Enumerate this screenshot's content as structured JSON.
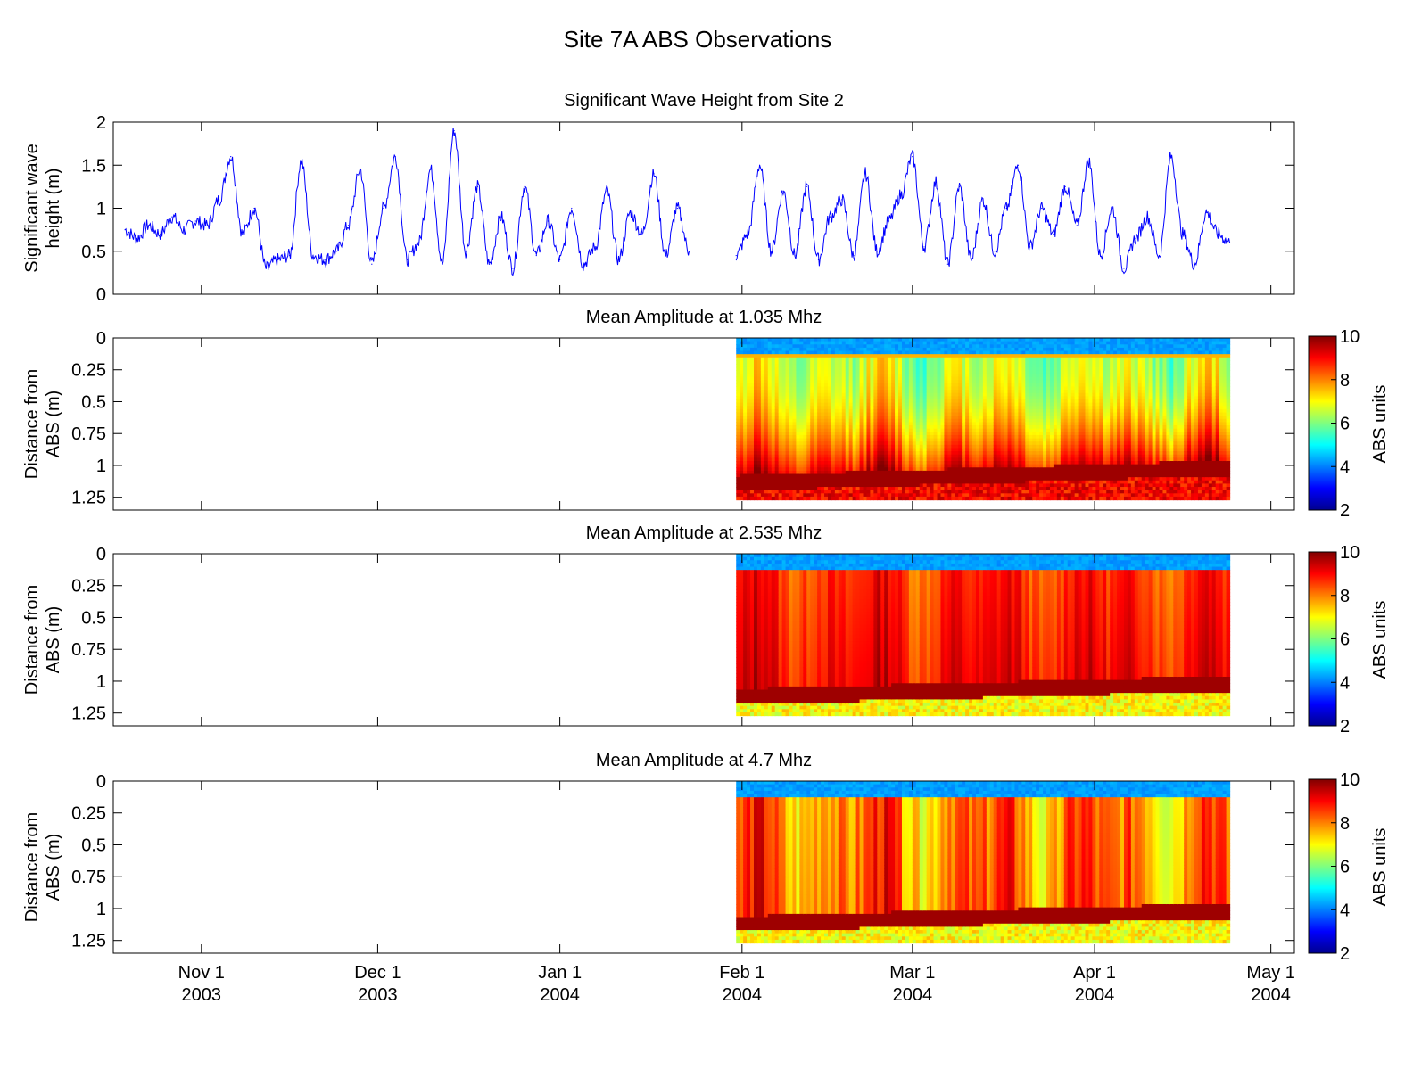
{
  "figure": {
    "title": "Site 7A ABS Observations",
    "time_axis": {
      "start": "2003-10-17",
      "end": "2004-05-05",
      "ticks": [
        {
          "date": "2003-11-01",
          "line1": "Nov 1",
          "line2": "2003"
        },
        {
          "date": "2003-12-01",
          "line1": "Dec 1",
          "line2": "2003"
        },
        {
          "date": "2004-01-01",
          "line1": "Jan 1",
          "line2": "2004"
        },
        {
          "date": "2004-02-01",
          "line1": "Feb 1",
          "line2": "2004"
        },
        {
          "date": "2004-03-01",
          "line1": "Mar 1",
          "line2": "2004"
        },
        {
          "date": "2004-04-01",
          "line1": "Apr 1",
          "line2": "2004"
        },
        {
          "date": "2004-05-01",
          "line1": "May 1",
          "line2": "2004"
        }
      ]
    }
  },
  "chart_data": [
    {
      "type": "line",
      "title": "Significant Wave Height from Site 2",
      "ylabel": [
        "Significant wave",
        "height (m)"
      ],
      "ylim": [
        0,
        2
      ],
      "yticks": [
        "0",
        "0.5",
        "1",
        "1.5",
        "2"
      ],
      "line_color": "#0000ff",
      "gap": {
        "start": "2004-01-23",
        "end": "2004-01-31"
      },
      "series": [
        {
          "x": [
            "2003-10-19",
            "2003-10-21",
            "2003-10-23",
            "2003-10-25",
            "2003-10-27",
            "2003-10-29",
            "2003-10-31",
            "2003-11-02",
            "2003-11-04",
            "2003-11-06",
            "2003-11-08",
            "2003-11-10",
            "2003-11-12",
            "2003-11-14",
            "2003-11-16",
            "2003-11-18",
            "2003-11-20",
            "2003-11-22",
            "2003-11-24",
            "2003-11-26",
            "2003-11-28",
            "2003-11-30",
            "2003-12-02",
            "2003-12-04",
            "2003-12-06",
            "2003-12-08",
            "2003-12-10",
            "2003-12-12",
            "2003-12-14",
            "2003-12-16",
            "2003-12-18",
            "2003-12-20",
            "2003-12-22",
            "2003-12-24",
            "2003-12-26",
            "2003-12-28",
            "2003-12-30",
            "2004-01-01",
            "2004-01-03",
            "2004-01-05",
            "2004-01-07",
            "2004-01-09",
            "2004-01-11",
            "2004-01-13",
            "2004-01-15",
            "2004-01-17",
            "2004-01-19",
            "2004-01-21",
            "2004-01-23"
          ],
          "values": [
            0.75,
            0.65,
            0.8,
            0.7,
            0.9,
            0.75,
            0.85,
            0.8,
            1.1,
            1.6,
            0.7,
            1.0,
            0.3,
            0.4,
            0.45,
            1.55,
            0.45,
            0.4,
            0.5,
            0.8,
            1.45,
            0.35,
            1.0,
            1.6,
            0.4,
            0.6,
            1.45,
            0.35,
            1.9,
            0.5,
            1.25,
            0.35,
            0.9,
            0.3,
            1.25,
            0.45,
            0.85,
            0.4,
            1.0,
            0.35,
            0.55,
            1.2,
            0.4,
            0.95,
            0.7,
            1.4,
            0.45,
            1.0,
            0.5
          ]
        },
        {
          "x": [
            "2004-01-31",
            "2004-02-02",
            "2004-02-04",
            "2004-02-06",
            "2004-02-08",
            "2004-02-10",
            "2004-02-12",
            "2004-02-14",
            "2004-02-16",
            "2004-02-18",
            "2004-02-20",
            "2004-02-22",
            "2004-02-24",
            "2004-02-26",
            "2004-02-28",
            "2004-03-01",
            "2004-03-03",
            "2004-03-05",
            "2004-03-07",
            "2004-03-09",
            "2004-03-11",
            "2004-03-13",
            "2004-03-15",
            "2004-03-17",
            "2004-03-19",
            "2004-03-21",
            "2004-03-23",
            "2004-03-25",
            "2004-03-27",
            "2004-03-29",
            "2004-03-31",
            "2004-04-02",
            "2004-04-04",
            "2004-04-06",
            "2004-04-08",
            "2004-04-10",
            "2004-04-12",
            "2004-04-14",
            "2004-04-16",
            "2004-04-18",
            "2004-04-20",
            "2004-04-22",
            "2004-04-24"
          ],
          "values": [
            0.45,
            0.7,
            1.5,
            0.5,
            1.2,
            0.45,
            1.25,
            0.4,
            0.9,
            1.1,
            0.45,
            1.4,
            0.5,
            0.85,
            1.15,
            1.6,
            0.55,
            1.3,
            0.35,
            1.25,
            0.4,
            1.1,
            0.5,
            1.0,
            1.5,
            0.55,
            1.0,
            0.7,
            1.25,
            0.8,
            1.55,
            0.45,
            1.0,
            0.3,
            0.65,
            0.9,
            0.45,
            1.6,
            0.7,
            0.35,
            0.95,
            0.7,
            0.6
          ]
        }
      ]
    },
    {
      "type": "heatmap",
      "title": "Mean Amplitude at 1.035 Mhz",
      "ylabel": [
        "Distance from",
        "ABS (m)"
      ],
      "yticks": [
        "0",
        "0.25",
        "0.5",
        "0.75",
        "1",
        "1.25"
      ],
      "ylim": [
        0,
        1.35
      ],
      "data_x_range": [
        "2004-01-31",
        "2004-04-24"
      ],
      "data_y_range": [
        0,
        1.27
      ],
      "colorbar": {
        "label": "ABS units",
        "ticks": [
          "2",
          "4",
          "6",
          "8",
          "10"
        ],
        "range": [
          2,
          10
        ]
      },
      "profile_kind": "low",
      "bed_depth": {
        "start": 1.12,
        "end": 1.0
      }
    },
    {
      "type": "heatmap",
      "title": "Mean Amplitude at 2.535 Mhz",
      "ylabel": [
        "Distance from",
        "ABS (m)"
      ],
      "yticks": [
        "0",
        "0.25",
        "0.5",
        "0.75",
        "1",
        "1.25"
      ],
      "ylim": [
        0,
        1.35
      ],
      "data_x_range": [
        "2004-01-31",
        "2004-04-24"
      ],
      "data_y_range": [
        0,
        1.27
      ],
      "colorbar": {
        "label": "ABS units",
        "ticks": [
          "2",
          "4",
          "6",
          "8",
          "10"
        ],
        "range": [
          2,
          10
        ]
      },
      "profile_kind": "high",
      "bed_depth": {
        "start": 1.1,
        "end": 1.0
      }
    },
    {
      "type": "heatmap",
      "title": "Mean Amplitude at 4.7 Mhz",
      "ylabel": [
        "Distance from",
        "ABS (m)"
      ],
      "yticks": [
        "0",
        "0.25",
        "0.5",
        "0.75",
        "1",
        "1.25"
      ],
      "ylim": [
        0,
        1.35
      ],
      "data_x_range": [
        "2004-01-31",
        "2004-04-24"
      ],
      "data_y_range": [
        0,
        1.27
      ],
      "colorbar": {
        "label": "ABS units",
        "ticks": [
          "2",
          "4",
          "6",
          "8",
          "10"
        ],
        "range": [
          2,
          10
        ]
      },
      "profile_kind": "mid",
      "bed_depth": {
        "start": 1.1,
        "end": 1.0
      }
    }
  ]
}
